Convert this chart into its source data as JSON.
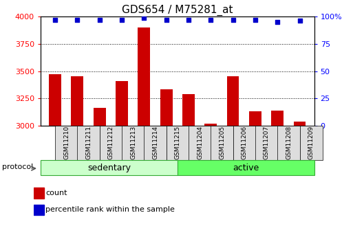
{
  "title": "GDS654 / M75281_at",
  "samples": [
    "GSM11210",
    "GSM11211",
    "GSM11212",
    "GSM11213",
    "GSM11214",
    "GSM11215",
    "GSM11204",
    "GSM11205",
    "GSM11206",
    "GSM11207",
    "GSM11208",
    "GSM11209"
  ],
  "groups": [
    "sedentary",
    "sedentary",
    "sedentary",
    "sedentary",
    "sedentary",
    "sedentary",
    "active",
    "active",
    "active",
    "active",
    "active",
    "active"
  ],
  "counts": [
    3470,
    3450,
    3160,
    3410,
    3900,
    3330,
    3290,
    3020,
    3450,
    3130,
    3140,
    3040
  ],
  "percentile_ranks": [
    97,
    97,
    97,
    97,
    99,
    97,
    97,
    97,
    97,
    97,
    95,
    96
  ],
  "ylim_left": [
    3000,
    4000
  ],
  "ylim_right": [
    0,
    100
  ],
  "yticks_left": [
    3000,
    3250,
    3500,
    3750,
    4000
  ],
  "yticks_right": [
    0,
    25,
    50,
    75,
    100
  ],
  "bar_color": "#cc0000",
  "dot_color": "#0000cc",
  "sedentary_color": "#ccffcc",
  "active_color": "#66ff66",
  "group_border_color": "#33aa33",
  "col_box_color": "#dddddd",
  "protocol_label": "protocol",
  "legend_items": [
    "count",
    "percentile rank within the sample"
  ],
  "title_fontsize": 11,
  "tick_fontsize": 8,
  "group_fontsize": 9,
  "legend_fontsize": 8,
  "sample_fontsize": 6.5
}
